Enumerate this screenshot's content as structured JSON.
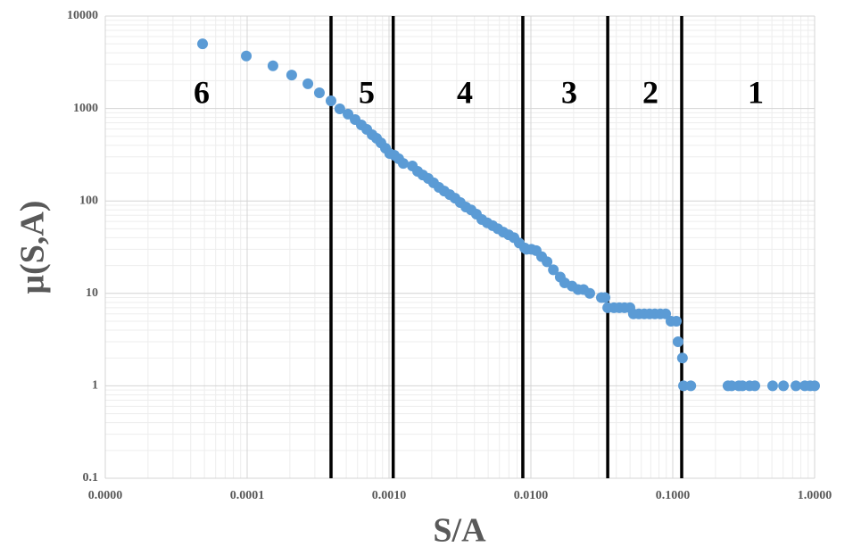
{
  "chart_data": {
    "type": "scatter",
    "xlabel": "S/A",
    "ylabel": "μ(S,A)",
    "log_x": true,
    "log_y": true,
    "grid": true,
    "minor_grid": true,
    "color": "#5b9bd5",
    "xlim": [
      1e-05,
      1
    ],
    "ylim": [
      0.1,
      10000
    ],
    "xticks": [
      {
        "value": 1e-05,
        "label": "0.0000"
      },
      {
        "value": 0.0001,
        "label": "0.0001"
      },
      {
        "value": 0.001,
        "label": "0.0010"
      },
      {
        "value": 0.01,
        "label": "0.0100"
      },
      {
        "value": 0.1,
        "label": "0.1000"
      },
      {
        "value": 1,
        "label": "1.0000"
      }
    ],
    "yticks": [
      0.1,
      1,
      10,
      100,
      1000,
      10000
    ],
    "dividers": [
      0.00039,
      0.00107,
      0.00877,
      0.0348,
      0.1156
    ],
    "annotations": [
      "6",
      "5",
      "4",
      "3",
      "2",
      "1"
    ],
    "x": [
      4.85e-05,
      9.86e-05,
      0.000152,
      0.000206,
      0.000268,
      0.000323,
      0.00039,
      0.00045,
      0.000514,
      0.000577,
      0.000638,
      0.000697,
      0.00076,
      0.000817,
      0.000877,
      0.000944,
      0.00101,
      0.00109,
      0.00117,
      0.00126,
      0.00146,
      0.00159,
      0.00173,
      0.00189,
      0.00206,
      0.00225,
      0.00245,
      0.00268,
      0.00292,
      0.00318,
      0.00348,
      0.00379,
      0.00413,
      0.00451,
      0.00492,
      0.00537,
      0.00585,
      0.00638,
      0.00697,
      0.0076,
      0.00828,
      0.00904,
      0.00931,
      0.0101,
      0.0109,
      0.0119,
      0.013,
      0.0144,
      0.0161,
      0.0173,
      0.0195,
      0.0215,
      0.0235,
      0.026,
      0.0314,
      0.0333,
      0.0348,
      0.0385,
      0.042,
      0.0457,
      0.0499,
      0.0528,
      0.0577,
      0.063,
      0.0686,
      0.0748,
      0.0817,
      0.0891,
      0.0971,
      0.106,
      0.109,
      0.117,
      0.119,
      0.134,
      0.245,
      0.26,
      0.292,
      0.31,
      0.348,
      0.379,
      0.506,
      0.603,
      0.738,
      0.853,
      0.931,
      1
    ],
    "values": [
      5000,
      3700,
      2900,
      2300,
      1850,
      1480,
      1210,
      990,
      870,
      760,
      664,
      594,
      520,
      476,
      425,
      372,
      326,
      312,
      286,
      255,
      239,
      209,
      191,
      175,
      157,
      140,
      128,
      117,
      107,
      96,
      86,
      80,
      72,
      63,
      58,
      54,
      50,
      46,
      43,
      40,
      35,
      31,
      30,
      30,
      29,
      25,
      22,
      18,
      15,
      13,
      12,
      11,
      11,
      10,
      9,
      9,
      7,
      7,
      7,
      7,
      7,
      6,
      6,
      6,
      6,
      6,
      6,
      6,
      5,
      5,
      3,
      2,
      1,
      1,
      1,
      1,
      1,
      1,
      1,
      1,
      1,
      1,
      1,
      1,
      1,
      1
    ]
  }
}
